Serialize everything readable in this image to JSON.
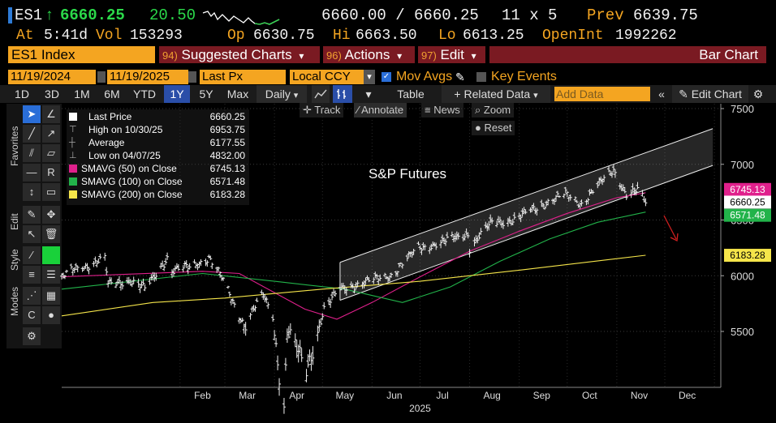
{
  "header": {
    "ticker": "ES1",
    "up_arrow": "↑",
    "last": "6660.25",
    "change": "20.50",
    "bid_ask": "6660.00 / 6660.25",
    "size": "11 x 5",
    "prev_label": "Prev",
    "prev_value": "6639.75",
    "at_label": "At",
    "at_time": "5:41d",
    "vol_label": "Vol",
    "vol_value": "153293",
    "op_label": "Op",
    "op_value": "6630.75",
    "hi_label": "Hi",
    "hi_value": "6663.50",
    "lo_label": "Lo",
    "lo_value": "6613.25",
    "oi_label": "OpenInt",
    "oi_value": "1992262"
  },
  "toolbar": {
    "security": "ES1 Index",
    "suggested_num": "94)",
    "suggested_label": "Suggested Charts",
    "actions_num": "96)",
    "actions_label": "Actions",
    "edit_num": "97)",
    "edit_label": "Edit",
    "chart_type": "Bar Chart",
    "caret": "▾"
  },
  "range_bar": {
    "start_date": "11/19/2024",
    "end_date": "11/19/2025",
    "field": "Last Px",
    "currency": "Local CCY",
    "mov_avgs": "Mov Avgs",
    "key_events": "Key Events"
  },
  "period_bar": {
    "periods": [
      "1D",
      "3D",
      "1M",
      "6M",
      "YTD",
      "1Y",
      "5Y",
      "Max"
    ],
    "selected": "1Y",
    "frequency": "Daily",
    "table": "Table",
    "related": "+ Related Data",
    "add_data_placeholder": "Add Data",
    "edit_chart": "Edit Chart"
  },
  "sub_toolbar": {
    "track": "Track",
    "annotate": "Annotate",
    "news": "News",
    "zoom": "Zoom",
    "reset": "Reset"
  },
  "left_tabs": {
    "favorites": "Favorites",
    "edit": "Edit",
    "style": "Style",
    "modes": "Modes"
  },
  "legend": [
    {
      "label": "Last Price",
      "value": "6660.25",
      "color": "#ffffff"
    },
    {
      "label": "High on 10/30/25",
      "value": "6953.75",
      "color": "#aaaaaa"
    },
    {
      "label": "Average",
      "value": "6177.55",
      "color": "#aaaaaa"
    },
    {
      "label": "Low on 04/07/25",
      "value": "4832.00",
      "color": "#aaaaaa"
    },
    {
      "label": "SMAVG (50)  on Close",
      "value": "6745.13",
      "color": "#e0208c"
    },
    {
      "label": "SMAVG (100)  on Close",
      "value": "6571.48",
      "color": "#22b34a"
    },
    {
      "label": "SMAVG (200)  on Close",
      "value": "6183.28",
      "color": "#f5e54a"
    }
  ],
  "chart_data": {
    "type": "bar",
    "annotation": "S&P Futures",
    "x_months": [
      "Feb",
      "Mar",
      "Apr",
      "May",
      "Jun",
      "Jul",
      "Aug",
      "Sep",
      "Oct",
      "Nov",
      "Dec"
    ],
    "x_year": "2025",
    "y_ticks": [
      "7500",
      "7000",
      "6500",
      "6000",
      "5500"
    ],
    "ylim": [
      4800,
      7550
    ],
    "last_price": 6660.25,
    "price_path": [
      [
        "2024-11-19",
        5980
      ],
      [
        "2024-11-27",
        6060
      ],
      [
        "2024-12-06",
        6100
      ],
      [
        "2024-12-16",
        6150
      ],
      [
        "2024-12-18",
        5920
      ],
      [
        "2024-12-31",
        5960
      ],
      [
        "2025-01-10",
        5880
      ],
      [
        "2025-01-24",
        6160
      ],
      [
        "2025-01-27",
        6040
      ],
      [
        "2025-02-07",
        6080
      ],
      [
        "2025-02-19",
        6160
      ],
      [
        "2025-02-28",
        5960
      ],
      [
        "2025-03-13",
        5560
      ],
      [
        "2025-03-25",
        5830
      ],
      [
        "2025-03-31",
        5640
      ],
      [
        "2025-04-04",
        5120
      ],
      [
        "2025-04-07",
        4832
      ],
      [
        "2025-04-09",
        5500
      ],
      [
        "2025-04-21",
        5150
      ],
      [
        "2025-05-02",
        5700
      ],
      [
        "2025-05-12",
        5880
      ],
      [
        "2025-05-30",
        5950
      ],
      [
        "2025-06-13",
        6010
      ],
      [
        "2025-06-30",
        6250
      ],
      [
        "2025-07-15",
        6300
      ],
      [
        "2025-07-31",
        6380
      ],
      [
        "2025-08-01",
        6250
      ],
      [
        "2025-08-15",
        6480
      ],
      [
        "2025-08-29",
        6500
      ],
      [
        "2025-09-15",
        6640
      ],
      [
        "2025-09-30",
        6730
      ],
      [
        "2025-10-10",
        6650
      ],
      [
        "2025-10-17",
        6760
      ],
      [
        "2025-10-30",
        6953.75
      ],
      [
        "2025-11-07",
        6730
      ],
      [
        "2025-11-14",
        6760
      ],
      [
        "2025-11-19",
        6660.25
      ]
    ],
    "series": [
      {
        "name": "SMAVG (50)",
        "value": 6745.13,
        "color": "#e0208c",
        "path": [
          [
            "2024-11-19",
            5990
          ],
          [
            "2025-02-15",
            6040
          ],
          [
            "2025-03-10",
            6020
          ],
          [
            "2025-04-20",
            5700
          ],
          [
            "2025-05-10",
            5610
          ],
          [
            "2025-06-01",
            5760
          ],
          [
            "2025-07-01",
            5990
          ],
          [
            "2025-08-01",
            6220
          ],
          [
            "2025-09-01",
            6400
          ],
          [
            "2025-10-01",
            6560
          ],
          [
            "2025-11-01",
            6700
          ],
          [
            "2025-11-19",
            6745.13
          ]
        ]
      },
      {
        "name": "SMAVG (100)",
        "value": 6571.48,
        "color": "#22b34a",
        "path": [
          [
            "2024-11-19",
            5880
          ],
          [
            "2025-02-15",
            6020
          ],
          [
            "2025-04-01",
            5950
          ],
          [
            "2025-05-15",
            5880
          ],
          [
            "2025-06-20",
            5760
          ],
          [
            "2025-07-20",
            5900
          ],
          [
            "2025-08-20",
            6130
          ],
          [
            "2025-09-20",
            6330
          ],
          [
            "2025-10-20",
            6480
          ],
          [
            "2025-11-19",
            6571.48
          ]
        ]
      },
      {
        "name": "SMAVG (200)",
        "value": 6183.28,
        "color": "#f5e54a",
        "path": [
          [
            "2024-11-19",
            5640
          ],
          [
            "2025-01-15",
            5760
          ],
          [
            "2025-03-01",
            5800
          ],
          [
            "2025-05-01",
            5880
          ],
          [
            "2025-07-01",
            5950
          ],
          [
            "2025-09-01",
            6050
          ],
          [
            "2025-11-19",
            6183.28
          ]
        ]
      }
    ],
    "channel": {
      "upper": [
        [
          "2025-05-12",
          6120
        ],
        [
          "2025-12-31",
          7320
        ]
      ],
      "lower": [
        [
          "2025-05-12",
          5780
        ],
        [
          "2025-12-31",
          6990
        ]
      ]
    },
    "labels": {
      "pink": "6745.13",
      "white": "6660.25",
      "green": "6571.48",
      "yellow": "6183.28"
    },
    "grid": true
  },
  "colors": {
    "amber": "#f4a521",
    "panel_red": "#7a1a22",
    "select_blue": "#2a4ea8"
  }
}
